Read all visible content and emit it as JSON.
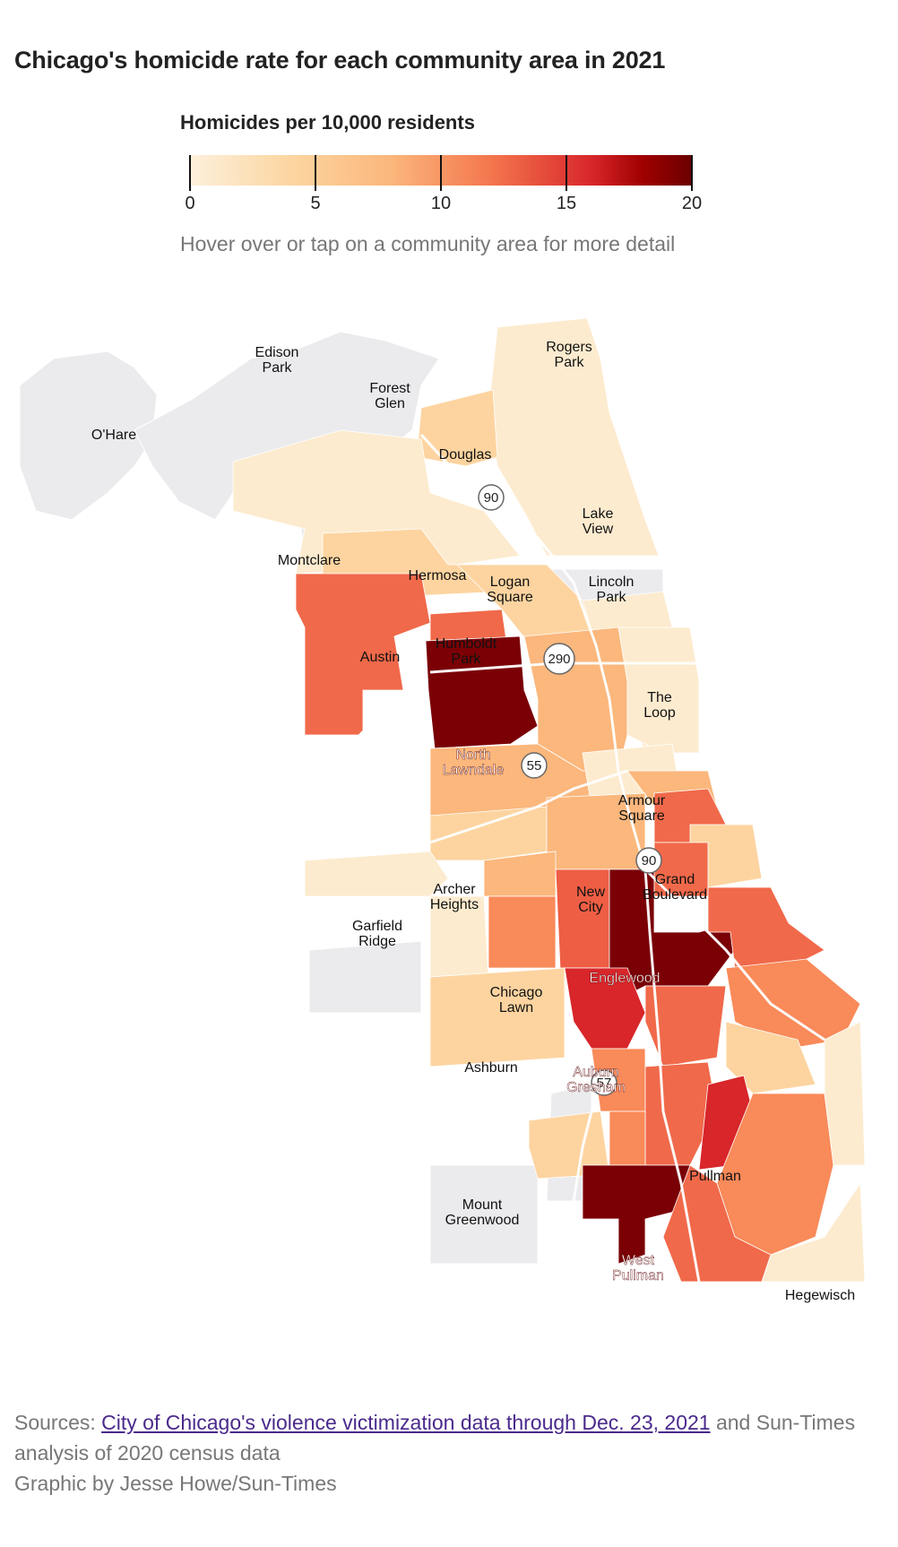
{
  "title": "Chicago's homicide rate for each community area in 2021",
  "legend": {
    "title": "Homicides per 10,000 residents",
    "ticks": [
      "0",
      "5",
      "10",
      "15",
      "20"
    ],
    "range": [
      0,
      20
    ],
    "colors": [
      "#fdf0dc",
      "#fcd6a1",
      "#fbb77c",
      "#f4764e",
      "#d8262a",
      "#6a0000"
    ]
  },
  "hint": "Hover over or tap on a community area for more detail",
  "map": {
    "highway_shields": [
      "90",
      "290",
      "55",
      "90",
      "57"
    ],
    "labels": {
      "edison_park": [
        "Edison",
        "Park"
      ],
      "rogers_park": [
        "Rogers",
        "Park"
      ],
      "forest_glen": [
        "Forest",
        "Glen"
      ],
      "ohare": "O'Hare",
      "douglas": "Douglas",
      "lake_view": [
        "Lake",
        "View"
      ],
      "montclare": "Montclare",
      "hermosa": "Hermosa",
      "logan_square": [
        "Logan",
        "Square"
      ],
      "lincoln_park": [
        "Lincoln",
        "Park"
      ],
      "austin": "Austin",
      "humboldt_park": [
        "Humboldt",
        "Park"
      ],
      "the_loop": [
        "The",
        "Loop"
      ],
      "north_lawndale": [
        "North",
        "Lawndale"
      ],
      "armour_square": [
        "Armour",
        "Square"
      ],
      "archer_heights": [
        "Archer",
        "Heights"
      ],
      "new_city": [
        "New",
        "City"
      ],
      "grand_boulevard": [
        "Grand",
        "Boulevard"
      ],
      "garfield_ridge": [
        "Garfield",
        "Ridge"
      ],
      "englewood": "Englewood",
      "chicago_lawn": [
        "Chicago",
        "Lawn"
      ],
      "ashburn": "Ashburn",
      "auburn_gresham": [
        "Auburn",
        "Gresham"
      ],
      "pullman": "Pullman",
      "mount_greenwood": [
        "Mount",
        "Greenwood"
      ],
      "west_pullman": [
        "West",
        "Pullman"
      ],
      "hegewisch": "Hegewisch"
    }
  },
  "sources": {
    "prefix": "Sources: ",
    "link_text": "City of Chicago's violence victimization data through Dec. 23, 2021",
    "suffix": " and Sun-Times analysis of 2020 census data",
    "credit": "Graphic by Jesse Howe/Sun-Times"
  }
}
